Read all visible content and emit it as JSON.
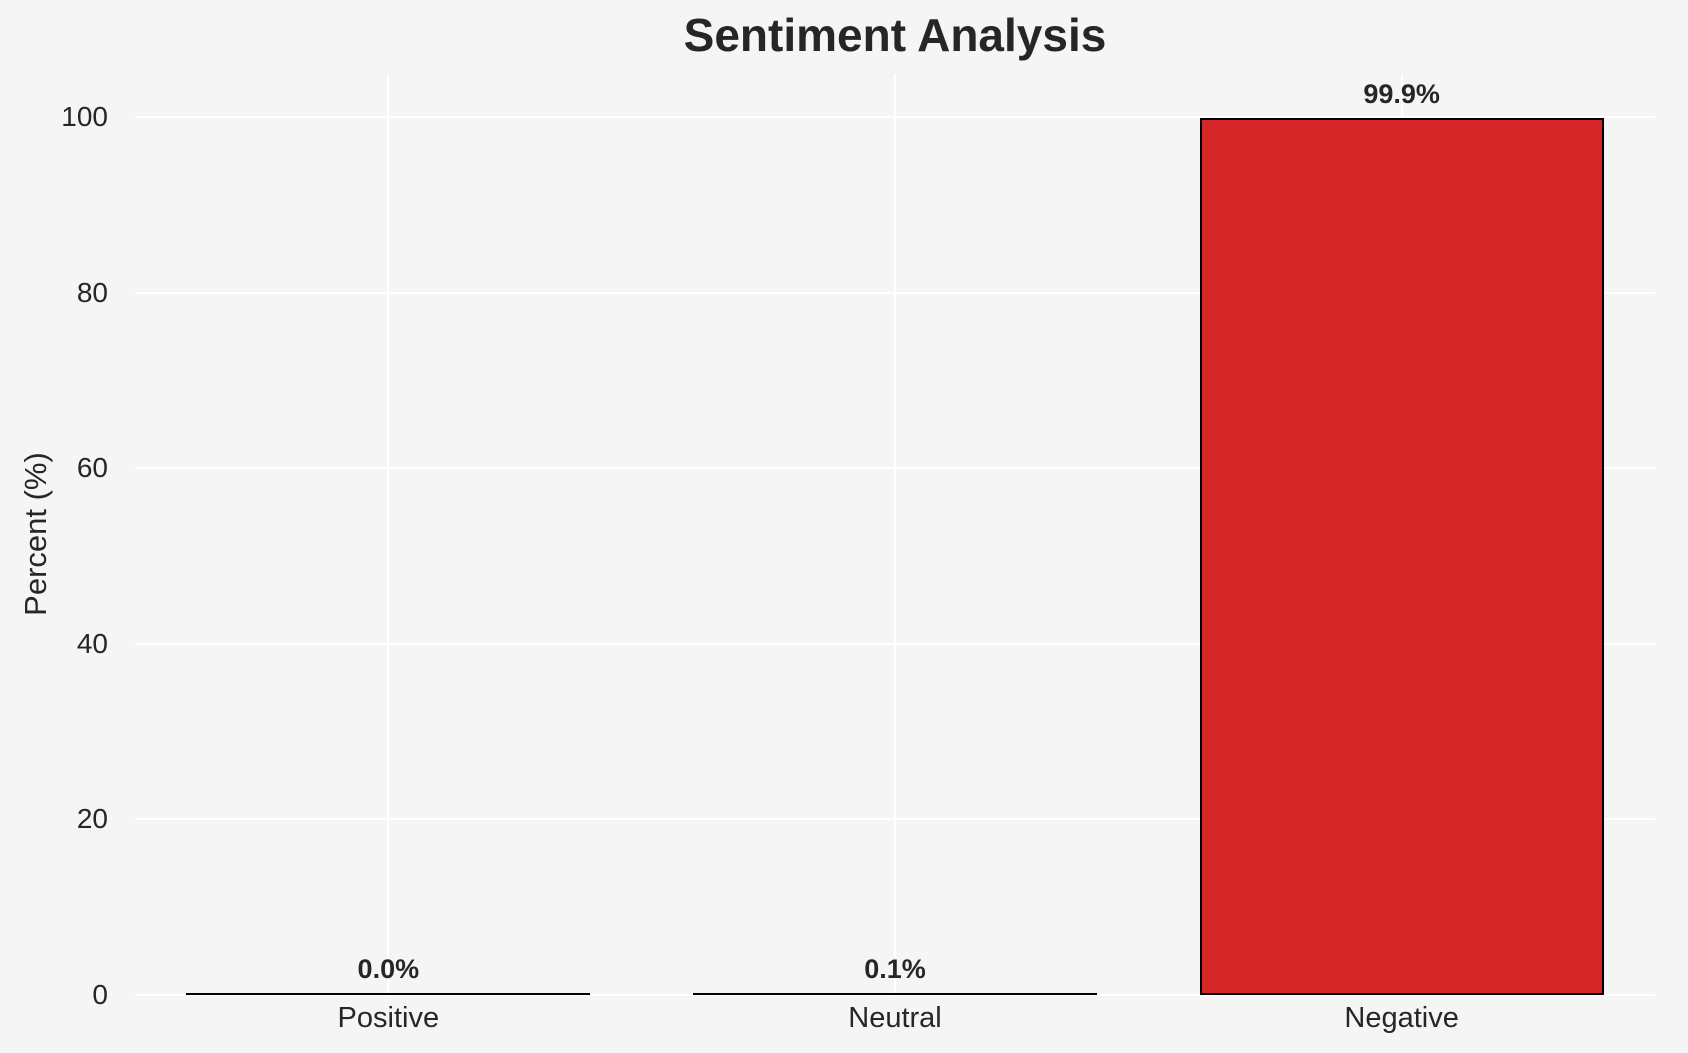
{
  "chart_data": {
    "type": "bar",
    "title": "Sentiment Analysis",
    "xlabel": "",
    "ylabel": "Percent (%)",
    "categories": [
      "Positive",
      "Neutral",
      "Negative"
    ],
    "values": [
      0.0,
      0.1,
      99.9
    ],
    "value_labels": [
      "0.0%",
      "0.1%",
      "99.9%"
    ],
    "yticks": [
      0,
      20,
      40,
      60,
      80,
      100
    ],
    "ytick_labels": [
      "0",
      "20",
      "40",
      "60",
      "80",
      "100"
    ],
    "ylim": [
      0,
      104.9
    ],
    "grid": true,
    "legend": false,
    "colors": {
      "bar_fill": "#d62728",
      "bar_edge": "#000000",
      "background": "#f5f5f5",
      "gridline": "#ffffff",
      "text": "#262626"
    }
  }
}
